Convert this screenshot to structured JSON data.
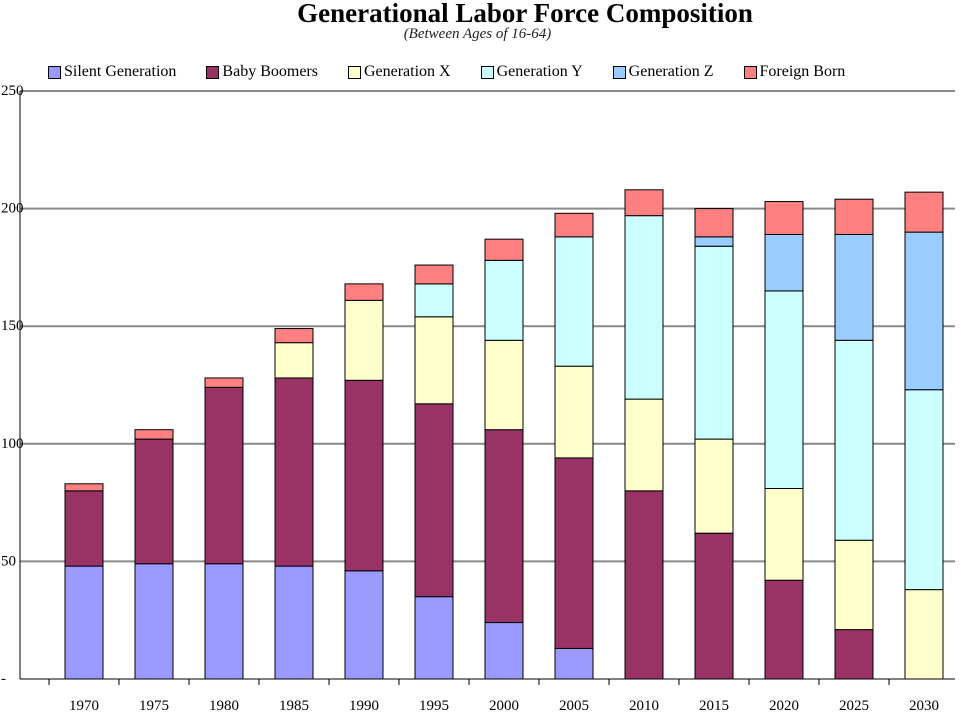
{
  "chart_data": {
    "type": "bar",
    "stacked": true,
    "title": "Generational Labor Force Composition",
    "subtitle": "(Between Ages of 16-64)",
    "xlabel": "",
    "ylabel": "",
    "ylim": [
      0,
      250
    ],
    "y_ticks": [
      "-",
      "50",
      "100",
      "150",
      "200",
      "250"
    ],
    "y_tick_values": [
      0,
      50,
      100,
      150,
      200,
      250
    ],
    "grid": true,
    "legend_position": "top",
    "categories": [
      "1970",
      "1975",
      "1980",
      "1985",
      "1990",
      "1995",
      "2000",
      "2005",
      "2010",
      "2015",
      "2020",
      "2025",
      "2030"
    ],
    "series": [
      {
        "name": "Silent Generation",
        "color": "#9999ff",
        "values": [
          48,
          49,
          49,
          48,
          46,
          35,
          24,
          13,
          0,
          0,
          0,
          0,
          0
        ]
      },
      {
        "name": "Baby Boomers",
        "color": "#993366",
        "values": [
          32,
          53,
          75,
          80,
          81,
          82,
          82,
          81,
          80,
          62,
          42,
          21,
          0
        ]
      },
      {
        "name": "Generation X",
        "color": "#ffffcc",
        "values": [
          0,
          0,
          0,
          15,
          34,
          37,
          38,
          39,
          39,
          40,
          39,
          38,
          38
        ]
      },
      {
        "name": "Generation Y",
        "color": "#ccffff",
        "values": [
          0,
          0,
          0,
          0,
          0,
          14,
          34,
          55,
          78,
          82,
          84,
          85,
          85
        ]
      },
      {
        "name": "Generation Z",
        "color": "#99ccff",
        "values": [
          0,
          0,
          0,
          0,
          0,
          0,
          0,
          0,
          0,
          4,
          24,
          45,
          67
        ]
      },
      {
        "name": "Foreign Born",
        "color": "#ff8080",
        "values": [
          3,
          4,
          4,
          6,
          7,
          8,
          9,
          10,
          11,
          12,
          14,
          15,
          17
        ]
      }
    ]
  }
}
